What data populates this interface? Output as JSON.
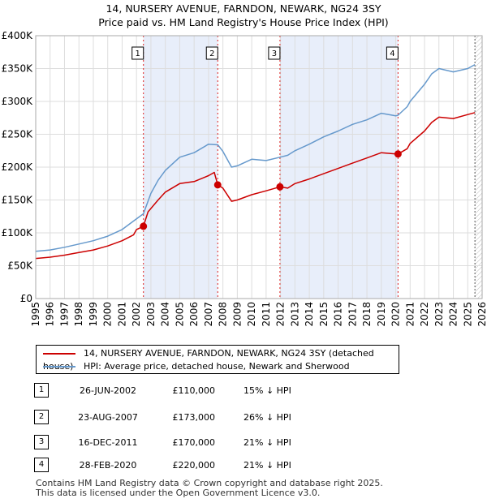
{
  "title_line1": "14, NURSERY AVENUE, FARNDON, NEWARK, NG24 3SY",
  "title_line2": "Price paid vs. HM Land Registry's House Price Index (HPI)",
  "colors": {
    "property": "#cc0000",
    "hpi": "#6699cc",
    "shade": "#e8eefa",
    "sale_line": "#dd2222"
  },
  "chart_data": {
    "type": "line",
    "title": "14, NURSERY AVENUE, FARNDON, NEWARK, NG24 3SY — Price paid vs. HM Land Registry's House Price Index (HPI)",
    "xlim": [
      1995,
      2026
    ],
    "ylim": [
      0,
      400000
    ],
    "x_ticks": [
      "1995",
      "1996",
      "1997",
      "1998",
      "1999",
      "2000",
      "2001",
      "2002",
      "2003",
      "2004",
      "2005",
      "2006",
      "2007",
      "2008",
      "2009",
      "2010",
      "2011",
      "2012",
      "2013",
      "2014",
      "2015",
      "2016",
      "2017",
      "2018",
      "2019",
      "2020",
      "2021",
      "2022",
      "2023",
      "2024",
      "2025",
      "2026"
    ],
    "y_ticks": [
      {
        "value": 0,
        "label": "£0"
      },
      {
        "value": 50000,
        "label": "£50K"
      },
      {
        "value": 100000,
        "label": "£100K"
      },
      {
        "value": 150000,
        "label": "£150K"
      },
      {
        "value": 200000,
        "label": "£200K"
      },
      {
        "value": 250000,
        "label": "£250K"
      },
      {
        "value": 300000,
        "label": "£300K"
      },
      {
        "value": 350000,
        "label": "£350K"
      },
      {
        "value": 400000,
        "label": "£400K"
      }
    ],
    "data_end": 2025.5,
    "series": [
      {
        "name": "14, NURSERY AVENUE, FARNDON, NEWARK, NG24 3SY (detached house)",
        "color": "#cc0000",
        "x": [
          1995,
          1996,
          1997,
          1998,
          1999,
          2000,
          2001,
          2001.8,
          2002.0,
          2002.48,
          2002.8,
          2003.5,
          2004,
          2005,
          2006,
          2007,
          2007.4,
          2007.64,
          2008,
          2008.6,
          2009,
          2010,
          2011,
          2011.96,
          2012.5,
          2013,
          2014,
          2015,
          2016,
          2017,
          2018,
          2019,
          2020,
          2020.16,
          2020.8,
          2021,
          2022,
          2022.5,
          2023,
          2024,
          2025,
          2025.5
        ],
        "y": [
          61000,
          63000,
          66000,
          70000,
          74000,
          80000,
          88000,
          97000,
          105000,
          110000,
          132000,
          150000,
          162000,
          175000,
          178000,
          187000,
          192000,
          173000,
          168000,
          148000,
          150000,
          158000,
          164000,
          170000,
          168000,
          175000,
          182000,
          190000,
          198000,
          206000,
          214000,
          222000,
          220000,
          220000,
          228000,
          236000,
          255000,
          268000,
          276000,
          274000,
          280000,
          283000
        ]
      },
      {
        "name": "HPI: Average price, detached house, Newark and Sherwood",
        "color": "#6699cc",
        "x": [
          1995,
          1996,
          1997,
          1998,
          1999,
          2000,
          2001,
          2001.8,
          2002.48,
          2003,
          2003.5,
          2004,
          2005,
          2006,
          2007,
          2007.64,
          2008,
          2008.6,
          2009,
          2010,
          2011,
          2011.96,
          2012.5,
          2013,
          2014,
          2015,
          2016,
          2017,
          2018,
          2019,
          2020,
          2020.16,
          2020.8,
          2021,
          2022,
          2022.5,
          2023,
          2024,
          2025,
          2025.5
        ],
        "y": [
          72000,
          74000,
          78000,
          83000,
          88000,
          95000,
          105000,
          118000,
          129000,
          160000,
          180000,
          195000,
          215000,
          222000,
          235000,
          234000,
          224000,
          200000,
          202000,
          212000,
          210000,
          215000,
          218000,
          225000,
          235000,
          246000,
          255000,
          265000,
          272000,
          282000,
          278000,
          279000,
          292000,
          300000,
          326000,
          342000,
          350000,
          345000,
          350000,
          356000
        ]
      }
    ],
    "sales": [
      {
        "label": "1",
        "x": 2002.48,
        "price": 110000
      },
      {
        "label": "2",
        "x": 2007.64,
        "price": 173000
      },
      {
        "label": "3",
        "x": 2011.96,
        "price": 170000
      },
      {
        "label": "4",
        "x": 2020.16,
        "price": 220000
      }
    ]
  },
  "legend": {
    "property": "14, NURSERY AVENUE, FARNDON, NEWARK, NG24 3SY (detached house)",
    "hpi": "HPI: Average price, detached house, Newark and Sherwood"
  },
  "sales_table": [
    {
      "num": "1",
      "date": "26-JUN-2002",
      "price": "£110,000",
      "hpi": "15% ↓ HPI"
    },
    {
      "num": "2",
      "date": "23-AUG-2007",
      "price": "£173,000",
      "hpi": "26% ↓ HPI"
    },
    {
      "num": "3",
      "date": "16-DEC-2011",
      "price": "£170,000",
      "hpi": "21% ↓ HPI"
    },
    {
      "num": "4",
      "date": "28-FEB-2020",
      "price": "£220,000",
      "hpi": "21% ↓ HPI"
    }
  ],
  "footer": {
    "line1": "Contains HM Land Registry data © Crown copyright and database right 2025.",
    "line2": "This data is licensed under the Open Government Licence v3.0."
  }
}
